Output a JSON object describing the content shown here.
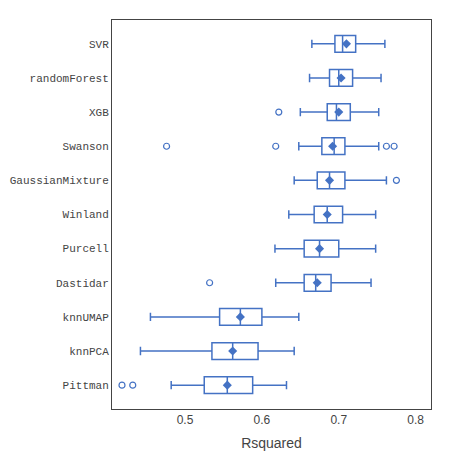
{
  "chart_data": {
    "type": "box",
    "orientation": "horizontal",
    "xlabel": "Rsquared",
    "categories": [
      "SVR",
      "randomForest",
      "XGB",
      "Swanson",
      "GaussianMixture",
      "Winland",
      "Purcell",
      "Dastidar",
      "knnUMAP",
      "knnPCA",
      "Pittman"
    ],
    "boxes": [
      {
        "whislo": 0.665,
        "q1": 0.695,
        "med": 0.705,
        "q3": 0.722,
        "whishi": 0.76,
        "mean": 0.71,
        "fliers": []
      },
      {
        "whislo": 0.662,
        "q1": 0.688,
        "med": 0.7,
        "q3": 0.718,
        "whishi": 0.755,
        "mean": 0.703,
        "fliers": []
      },
      {
        "whislo": 0.65,
        "q1": 0.685,
        "med": 0.697,
        "q3": 0.715,
        "whishi": 0.752,
        "mean": 0.7,
        "fliers": [
          0.622
        ]
      },
      {
        "whislo": 0.648,
        "q1": 0.678,
        "med": 0.694,
        "q3": 0.708,
        "whishi": 0.752,
        "mean": 0.692,
        "fliers": [
          0.476,
          0.618,
          0.762,
          0.772
        ]
      },
      {
        "whislo": 0.642,
        "q1": 0.672,
        "med": 0.688,
        "q3": 0.708,
        "whishi": 0.762,
        "mean": 0.688,
        "fliers": [
          0.775
        ]
      },
      {
        "whislo": 0.635,
        "q1": 0.668,
        "med": 0.685,
        "q3": 0.705,
        "whishi": 0.748,
        "mean": 0.685,
        "fliers": []
      },
      {
        "whislo": 0.617,
        "q1": 0.655,
        "med": 0.675,
        "q3": 0.7,
        "whishi": 0.748,
        "mean": 0.675,
        "fliers": []
      },
      {
        "whislo": 0.618,
        "q1": 0.655,
        "med": 0.67,
        "q3": 0.69,
        "whishi": 0.742,
        "mean": 0.672,
        "fliers": [
          0.532
        ]
      },
      {
        "whislo": 0.455,
        "q1": 0.545,
        "med": 0.572,
        "q3": 0.6,
        "whishi": 0.648,
        "mean": 0.572,
        "fliers": []
      },
      {
        "whislo": 0.442,
        "q1": 0.535,
        "med": 0.562,
        "q3": 0.595,
        "whishi": 0.642,
        "mean": 0.562,
        "fliers": []
      },
      {
        "whislo": 0.482,
        "q1": 0.525,
        "med": 0.555,
        "q3": 0.588,
        "whishi": 0.632,
        "mean": 0.555,
        "fliers": [
          0.418,
          0.432
        ]
      }
    ],
    "xlim": [
      0.405,
      0.82
    ],
    "xticks": [
      0.5,
      0.6,
      0.7,
      0.8
    ],
    "color": "#4472C4",
    "marker": "diamond",
    "grid": false
  }
}
